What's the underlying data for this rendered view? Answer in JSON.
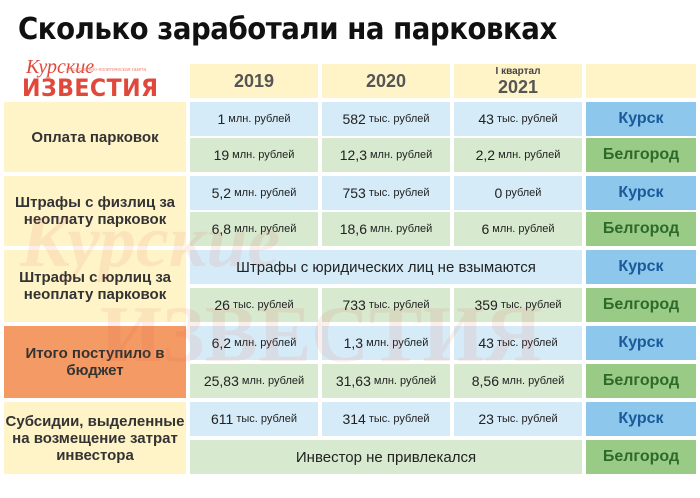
{
  "title": "Сколько заработали на парковках",
  "logo": {
    "line1": "Курские",
    "tagline": "общественно-политическая газета",
    "line2": "ИЗВЕСТИЯ"
  },
  "headers": {
    "y2019": "2019",
    "y2020": "2020",
    "q_small": "I квартал",
    "q_year": "2021"
  },
  "groups": {
    "parking": "Оплата парковок",
    "fines_persons": "Штрафы с физлиц за неоплату парковок",
    "fines_legal": "Штрафы с юрлиц за неоплату парковок",
    "total": "Итого поступило в бюджет",
    "subsidies": "Субсидии, выделенные на возмещение затрат инвестора"
  },
  "cities": {
    "kursk": "Курск",
    "belgorod": "Белгород"
  },
  "rows": {
    "parking_kursk": [
      {
        "v": "1",
        "u": "млн. рублей"
      },
      {
        "v": "582",
        "u": "тыс. рублей"
      },
      {
        "v": "43",
        "u": "тыс. рублей"
      }
    ],
    "parking_belgorod": [
      {
        "v": "19",
        "u": "млн. рублей"
      },
      {
        "v": "12,3",
        "u": "млн. рублей"
      },
      {
        "v": "2,2",
        "u": "млн. рублей"
      }
    ],
    "persons_kursk": [
      {
        "v": "5,2",
        "u": "млн. рублей"
      },
      {
        "v": "753",
        "u": "тыс. рублей"
      },
      {
        "v": "0",
        "u": "рублей"
      }
    ],
    "persons_belgorod": [
      {
        "v": "6,8",
        "u": "млн. рублей"
      },
      {
        "v": "18,6",
        "u": "млн. рублей"
      },
      {
        "v": "6",
        "u": "млн. рублей"
      }
    ],
    "legal_kursk_note": "Штрафы с юридических лиц не взымаются",
    "legal_belgorod": [
      {
        "v": "26",
        "u": "тыс. рублей"
      },
      {
        "v": "733",
        "u": "тыс. рублей"
      },
      {
        "v": "359",
        "u": "тыс. рублей"
      }
    ],
    "total_kursk": [
      {
        "v": "6,2",
        "u": "млн. рублей"
      },
      {
        "v": "1,3",
        "u": "млн. рублей"
      },
      {
        "v": "43",
        "u": "тыс. рублей"
      }
    ],
    "total_belgorod": [
      {
        "v": "25,83",
        "u": "млн. рублей"
      },
      {
        "v": "31,63",
        "u": "млн. рублей"
      },
      {
        "v": "8,56",
        "u": "млн. рублей"
      }
    ],
    "subs_kursk": [
      {
        "v": "611",
        "u": "тыс. рублей"
      },
      {
        "v": "314",
        "u": "тыс. рублей"
      },
      {
        "v": "23",
        "u": "тыс. рублей"
      }
    ],
    "subs_belgorod_note": "Инвестор не привлекался"
  },
  "colors": {
    "group_bg": "#fff3c8",
    "group_total_bg": "#f49a64",
    "kursk_row": "#d6ebf8",
    "belgorod_row": "#d7e9cf",
    "kursk_tag": "#8dc8ec",
    "belgorod_tag": "#9acb86",
    "brand_red": "#e0483b"
  }
}
